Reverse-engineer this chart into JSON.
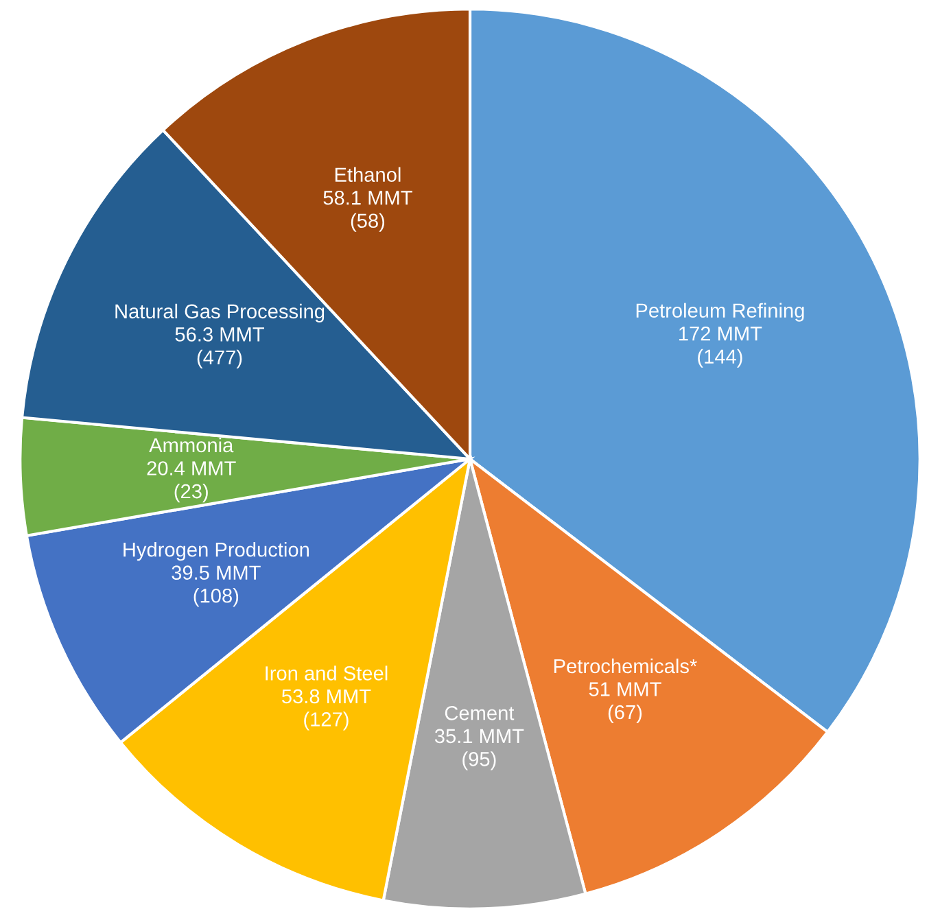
{
  "chart_data": {
    "type": "pie",
    "categories": [
      "Petroleum Refining",
      "Petrochemicals*",
      "Cement",
      "Iron and Steel",
      "Hydrogen Production",
      "Ammonia",
      "Natural Gas Processing",
      "Ethanol"
    ],
    "values": [
      172,
      51,
      35.1,
      53.8,
      39.5,
      20.4,
      56.3,
      58.1
    ],
    "value_labels": [
      "172 MMT\n(144)",
      "51 MMT\n(67)",
      "35.1 MMT\n(95)",
      "53.8 MMT\n(127)",
      "39.5 MMT\n(108)",
      "20.4 MMT\n(23)",
      "56.3 MMT\n(477)",
      "58.1 MMT\n(58)"
    ],
    "colors": [
      "#5b9bd5",
      "#ed7d31",
      "#a5a5a5",
      "#ffc000",
      "#4472c4",
      "#70ad47",
      "#255e91",
      "#9e480e"
    ]
  }
}
